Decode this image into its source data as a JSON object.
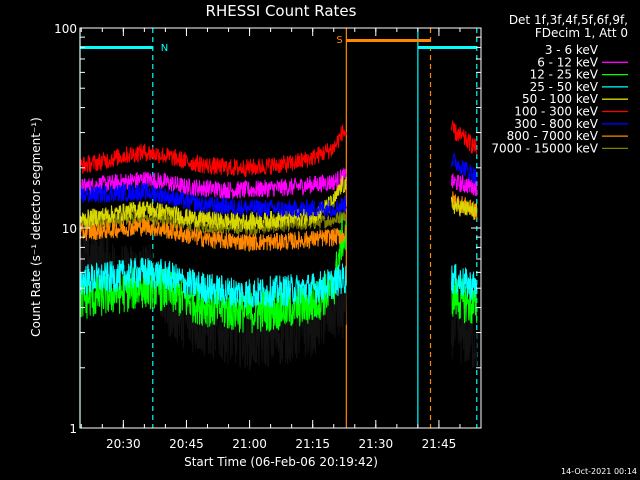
{
  "chart_data": {
    "type": "line",
    "title": "RHESSI Count Rates",
    "xlabel": "Start Time (06-Feb-06 20:19:42)",
    "ylabel": "Count Rate (s⁻¹ detector segment⁻¹)",
    "ylog": true,
    "ylim": [
      1,
      100
    ],
    "xlim": [
      "20:19:42",
      "21:55:00"
    ],
    "x_ticks": [
      "20:30",
      "20:45",
      "21:00",
      "21:15",
      "21:30",
      "21:45"
    ],
    "y_ticks": [
      "1",
      "10",
      "100"
    ],
    "grid": false,
    "legend_placement": "right",
    "legend_header": [
      "Det 1f,3f,4f,5f,6f,9f,",
      "FDecim 1, Att 0"
    ],
    "timestamp": "14-Oct-2021 00:14",
    "data_gap": [
      "21:23",
      "21:48"
    ],
    "series": [
      {
        "name": "3 - 6 keV",
        "color": "#000000",
        "x": [
          "20:19:42",
          "20:25",
          "20:30",
          "20:35",
          "20:38",
          "20:40",
          "20:45",
          "20:50",
          "20:55",
          "21:00",
          "21:05",
          "21:10",
          "21:15",
          "21:20",
          "21:48",
          "21:51",
          "21:54"
        ],
        "y": [
          7.5,
          6.8,
          5.8,
          6.0,
          5.7,
          4.2,
          3.5,
          3.2,
          3.0,
          2.8,
          2.9,
          3.0,
          3.3,
          3.9,
          3.2,
          2.9,
          2.7
        ]
      },
      {
        "name": "6 - 12 keV",
        "color": "#ff00ff",
        "x": [
          "20:19:42",
          "20:25",
          "20:30",
          "20:35",
          "20:40",
          "20:45",
          "20:50",
          "20:55",
          "21:00",
          "21:05",
          "21:10",
          "21:15",
          "21:20",
          "21:22",
          "21:48",
          "21:51",
          "21:54"
        ],
        "y": [
          16,
          16.5,
          17,
          17.5,
          17,
          16,
          15.8,
          15.5,
          15.5,
          15.8,
          16,
          16.5,
          17,
          18,
          17,
          16.5,
          16
        ]
      },
      {
        "name": "12 - 25 keV",
        "color": "#00ff00",
        "x": [
          "20:19:42",
          "20:25",
          "20:30",
          "20:35",
          "20:40",
          "20:45",
          "20:50",
          "20:55",
          "21:00",
          "21:05",
          "21:10",
          "21:15",
          "21:20",
          "21:22",
          "21:48",
          "21:51",
          "21:54"
        ],
        "y": [
          4.4,
          4.6,
          4.8,
          5.1,
          4.9,
          4.4,
          4.1,
          3.9,
          3.8,
          3.9,
          4.0,
          4.2,
          5.0,
          9.0,
          4.6,
          4.3,
          4.0
        ]
      },
      {
        "name": "25 - 50 keV",
        "color": "#00ffff",
        "x": [
          "20:19:42",
          "20:25",
          "20:30",
          "20:35",
          "20:40",
          "20:45",
          "20:50",
          "20:55",
          "21:00",
          "21:05",
          "21:10",
          "21:15",
          "21:20",
          "21:22",
          "21:48",
          "21:51",
          "21:54"
        ],
        "y": [
          5.5,
          5.6,
          5.8,
          6.0,
          5.8,
          5.3,
          5.0,
          4.8,
          4.7,
          4.8,
          4.9,
          5.0,
          5.3,
          5.6,
          5.6,
          5.3,
          5.1
        ]
      },
      {
        "name": "50 - 100 keV",
        "color": "#d8d800",
        "x": [
          "20:19:42",
          "20:25",
          "20:30",
          "20:35",
          "20:40",
          "20:45",
          "20:50",
          "20:55",
          "21:00",
          "21:05",
          "21:10",
          "21:15",
          "21:20",
          "21:22",
          "21:48",
          "21:51",
          "21:54"
        ],
        "y": [
          11,
          11.5,
          12,
          12.5,
          12,
          11.3,
          11,
          10.8,
          10.8,
          11,
          11.2,
          11.5,
          13.5,
          16.5,
          13,
          12.5,
          12
        ]
      },
      {
        "name": "100 - 300 keV",
        "color": "#ff0000",
        "x": [
          "20:19:42",
          "20:25",
          "20:30",
          "20:35",
          "20:40",
          "20:45",
          "20:50",
          "20:55",
          "21:00",
          "21:05",
          "21:10",
          "21:15",
          "21:20",
          "21:22",
          "21:48",
          "21:51",
          "21:54"
        ],
        "y": [
          20.5,
          21.5,
          23,
          24,
          23,
          21.5,
          20.5,
          20,
          20,
          20.5,
          21,
          22.5,
          25,
          30,
          31,
          28,
          25
        ]
      },
      {
        "name": "300 - 800 keV",
        "color": "#0000ff",
        "x": [
          "20:19:42",
          "20:25",
          "20:30",
          "20:35",
          "20:40",
          "20:45",
          "20:50",
          "20:55",
          "21:00",
          "21:05",
          "21:10",
          "21:15",
          "21:20",
          "21:22",
          "21:48",
          "21:51",
          "21:54"
        ],
        "y": [
          14.5,
          14.8,
          15,
          15.2,
          14.5,
          13.5,
          13,
          12.8,
          12.6,
          12.5,
          12.4,
          12.5,
          12.6,
          13,
          22,
          20,
          18
        ]
      },
      {
        "name": "800 - 7000 keV",
        "color": "#ff8800",
        "x": [
          "20:19:42",
          "20:25",
          "20:30",
          "20:35",
          "20:40",
          "20:45",
          "20:50",
          "20:55",
          "21:00",
          "21:05",
          "21:10",
          "21:15",
          "21:20",
          "21:22",
          "21:48",
          "21:51",
          "21:54"
        ],
        "y": [
          9.5,
          9.7,
          10,
          10.2,
          9.8,
          9.2,
          8.8,
          8.6,
          8.5,
          8.5,
          8.6,
          8.8,
          9.0,
          9.2,
          14,
          13,
          12
        ]
      },
      {
        "name": "7000 - 15000 keV",
        "color": "#808000",
        "x": [
          "20:19:42",
          "20:25",
          "20:30",
          "20:35",
          "20:40",
          "20:45",
          "20:50",
          "20:55",
          "21:00",
          "21:05",
          "21:10",
          "21:15",
          "21:20",
          "21:22",
          "21:48",
          "21:51",
          "21:54"
        ],
        "y": [
          10.5,
          10.8,
          11,
          11.2,
          10.9,
          10.5,
          10.2,
          10.0,
          10.0,
          10.2,
          10.4,
          10.6,
          11,
          11.5,
          13.5,
          13,
          12.5
        ]
      }
    ],
    "flag_bars": [
      {
        "label": "",
        "color": "#00ffff",
        "start": "20:19:42",
        "end": "20:37"
      },
      {
        "label": "N",
        "color": "#00ffff",
        "start": "20:37",
        "end": "20:37"
      },
      {
        "label": "S",
        "color": "#ff8800",
        "start": "21:23",
        "end": "21:43"
      },
      {
        "label": "",
        "color": "#00ffff",
        "start": "21:40",
        "end": "21:54"
      }
    ],
    "vertical_lines": [
      {
        "x": "20:19:42",
        "color": "#00ffff",
        "style": "solid"
      },
      {
        "x": "20:37",
        "color": "#00ffff",
        "style": "dashed"
      },
      {
        "x": "21:23",
        "color": "#ff8800",
        "style": "solid"
      },
      {
        "x": "21:40",
        "color": "#00ffff",
        "style": "solid"
      },
      {
        "x": "21:43",
        "color": "#ff8800",
        "style": "dashed"
      },
      {
        "x": "21:54",
        "color": "#00ffff",
        "style": "dashed"
      }
    ]
  }
}
